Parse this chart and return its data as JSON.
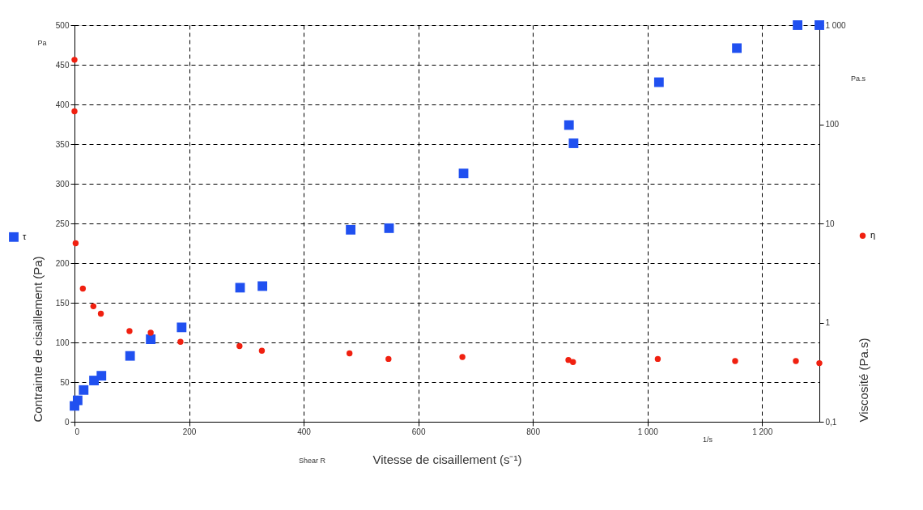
{
  "chart_data": {
    "type": "scatter",
    "xlabel": "Vitesse de cisaillement (s⁻¹)",
    "ylabel": "Contrainte de cisaillement (Pa)",
    "y2label": "Viscosité (Pa.s)",
    "xlim": [
      0,
      1300
    ],
    "xticks": [
      0,
      200,
      400,
      600,
      800,
      {
        "value": 1000,
        "label": "1 000"
      },
      {
        "value": 1200,
        "label": "1 200"
      }
    ],
    "ylim": [
      0,
      500
    ],
    "yticks": [
      0,
      50,
      100,
      150,
      200,
      250,
      300,
      350,
      400,
      450,
      500
    ],
    "y2lim": [
      0.1,
      1000
    ],
    "y2ticks": [
      {
        "value": 0.1,
        "label": "0,1"
      },
      1,
      10,
      100,
      {
        "value": 1000,
        "label": "1 000"
      }
    ],
    "log": "y2",
    "grid": true,
    "legend": "left",
    "annotations": [
      "Pa",
      "Pa.s",
      "1/s",
      "Shear R"
    ],
    "series": [
      {
        "name": "τ",
        "color": "#2050f0",
        "marker": "square",
        "x": [
          0,
          5.5,
          16,
          34,
          47,
          97,
          133,
          187,
          289,
          328,
          482,
          549,
          679,
          863,
          871,
          1020,
          1156,
          1262,
          1300
        ],
        "values": [
          20,
          27,
          40,
          52,
          58,
          83,
          104,
          119,
          169,
          171,
          242,
          244,
          313,
          374,
          351,
          428,
          471,
          500,
          500
        ]
      },
      {
        "name": "η",
        "color": "#f02010",
        "marker": "circle",
        "axis": "y2",
        "x": [
          0,
          0,
          2,
          14.6,
          33,
          46,
          96,
          133,
          185,
          288,
          327,
          480,
          548,
          677,
          862,
          870,
          1018,
          1153,
          1259,
          1300
        ],
        "values": [
          447,
          135,
          6.3,
          2.2,
          1.46,
          1.23,
          0.82,
          0.79,
          0.64,
          0.58,
          0.52,
          0.49,
          0.43,
          0.45,
          0.42,
          0.4,
          0.43,
          0.41,
          0.41,
          0.39
        ]
      }
    ]
  }
}
